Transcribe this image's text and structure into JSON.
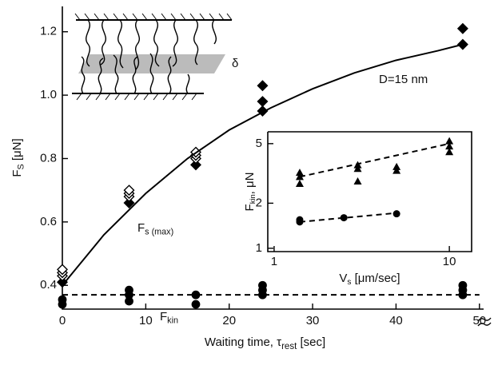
{
  "chart_data": [
    {
      "type": "scatter",
      "xlabel": [
        {
          "text": "Waiting time,  τ"
        },
        {
          "text": "rest",
          "sub": true
        },
        {
          "text": " [sec]"
        }
      ],
      "ylabel": [
        {
          "text": "F"
        },
        {
          "text": "S",
          "sub": true
        },
        {
          "text": " [μN]"
        }
      ],
      "xlim": [
        0,
        50.5
      ],
      "ylim": [
        0.325,
        1.28
      ],
      "xticks": [
        0,
        10,
        20,
        30,
        40,
        50
      ],
      "yticks": [
        0.4,
        0.6,
        0.8,
        {
          "value": 1,
          "label": "1.0"
        },
        1.2
      ],
      "annotations": [
        [
          {
            "text": "D=15 nm"
          }
        ],
        [
          {
            "text": "F"
          },
          {
            "text": "s (max)",
            "sub": true
          }
        ],
        [
          {
            "text": "F"
          },
          {
            "text": "kin",
            "sub": true
          }
        ],
        [
          {
            "text": "δ"
          }
        ]
      ],
      "series": [
        {
          "marker": "filled-diamond",
          "color": "#000",
          "x": [
            0,
            8,
            16,
            24,
            24,
            24,
            48,
            48
          ],
          "values": [
            0.41,
            0.66,
            0.78,
            0.95,
            0.98,
            1.03,
            1.16,
            1.21
          ]
        },
        {
          "marker": "open-diamond",
          "color": "#000",
          "x": [
            0,
            0,
            0,
            8,
            8,
            8,
            16,
            16,
            16
          ],
          "values": [
            0.43,
            0.44,
            0.45,
            0.68,
            0.69,
            0.7,
            0.8,
            0.81,
            0.82
          ]
        },
        {
          "marker": "filled-circle",
          "color": "#000",
          "x": [
            0,
            0,
            8,
            8,
            8,
            16,
            16,
            24,
            24,
            24,
            48,
            48,
            48
          ],
          "values": [
            0.34,
            0.355,
            0.35,
            0.37,
            0.385,
            0.34,
            0.37,
            0.37,
            0.385,
            0.4,
            0.37,
            0.385,
            0.4
          ]
        },
        {
          "marker": "line",
          "color": "#000",
          "x": [
            0,
            5,
            10,
            15,
            20,
            25,
            30,
            35,
            40,
            45,
            48
          ],
          "values": [
            0.4,
            0.56,
            0.69,
            0.8,
            0.89,
            0.96,
            1.02,
            1.07,
            1.11,
            1.14,
            1.16
          ]
        },
        {
          "marker": "dashed-line",
          "color": "#000",
          "x": [
            0,
            50
          ],
          "values": [
            0.37,
            0.37
          ]
        }
      ]
    },
    {
      "type": "scatter",
      "log": true,
      "xlabel": [
        {
          "text": "V"
        },
        {
          "text": "s",
          "sub": true
        },
        {
          "text": " [μm/sec]"
        }
      ],
      "ylabel": [
        {
          "text": "F"
        },
        {
          "text": "kin",
          "sub": true
        },
        {
          "text": ", μN"
        }
      ],
      "xlim": [
        0.92,
        13.4
      ],
      "ylim": [
        0.95,
        6
      ],
      "xticks": [
        1,
        10
      ],
      "yticks": [
        1,
        2,
        5
      ],
      "series": [
        {
          "marker": "filled-triangle",
          "color": "#000",
          "x": [
            1.4,
            1.4,
            1.4,
            3,
            3,
            3,
            5,
            5,
            10,
            10,
            10
          ],
          "values": [
            2.7,
            3.0,
            3.2,
            2.8,
            3.4,
            3.6,
            3.3,
            3.5,
            4.4,
            4.8,
            5.2
          ]
        },
        {
          "marker": "filled-circle",
          "color": "#000",
          "x": [
            1.4,
            1.4,
            2.5,
            5
          ],
          "values": [
            1.5,
            1.55,
            1.6,
            1.7
          ]
        },
        {
          "marker": "dashed-line",
          "color": "#000",
          "x": [
            1.4,
            10
          ],
          "values": [
            3.0,
            5.0
          ]
        },
        {
          "marker": "dashed-line",
          "color": "#000",
          "x": [
            1.4,
            5
          ],
          "values": [
            1.5,
            1.72
          ]
        }
      ]
    }
  ]
}
